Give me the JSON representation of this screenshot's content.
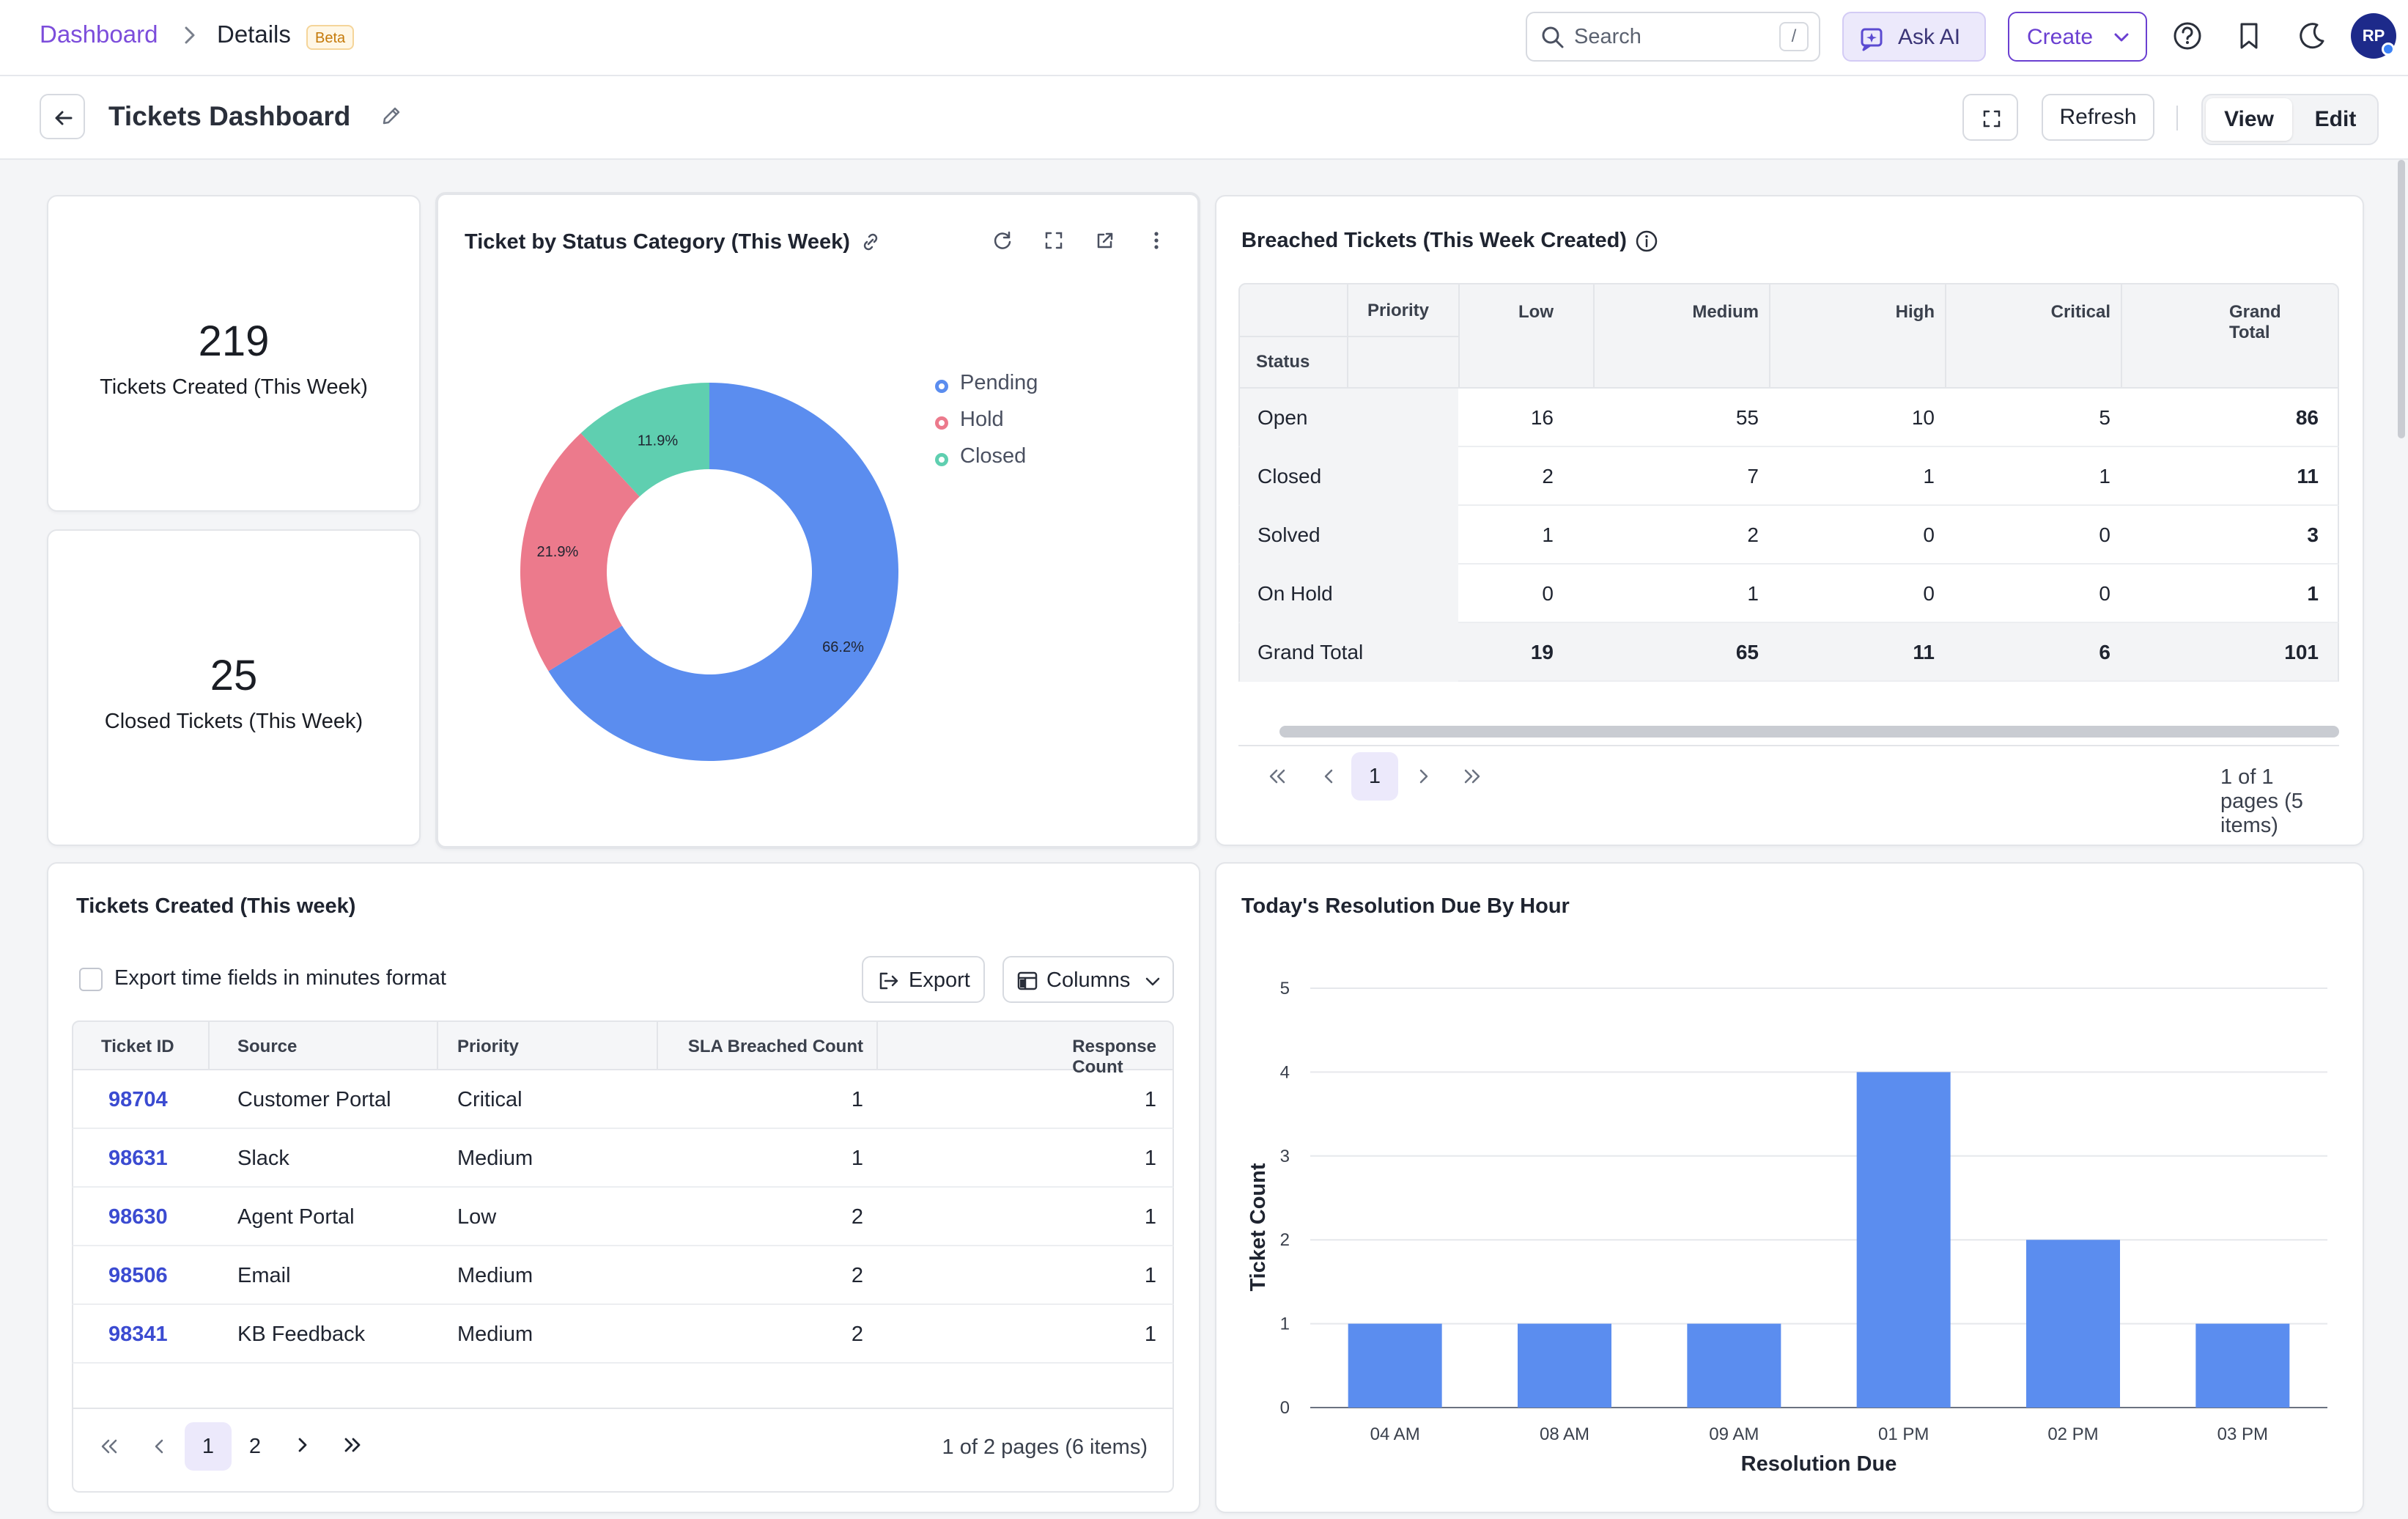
{
  "nav": {
    "breadcrumb_root": "Dashboard",
    "breadcrumb_current": "Details",
    "beta_badge": "Beta",
    "search_placeholder": "Search",
    "search_shortcut": "/",
    "ask_ai_label": "Ask AI",
    "create_label": "Create",
    "avatar_initials": "RP"
  },
  "page": {
    "title": "Tickets Dashboard",
    "refresh_label": "Refresh",
    "view_label": "View",
    "edit_label": "Edit"
  },
  "kpis": [
    {
      "value": "219",
      "label": "Tickets Created (This Week)"
    },
    {
      "value": "25",
      "label": "Closed Tickets (This Week)"
    }
  ],
  "status_chart": {
    "title": "Ticket by Status Category (This Week)",
    "legend": [
      {
        "name": "Pending",
        "color": "#5b8def"
      },
      {
        "name": "Hold",
        "color": "#ec7a8c"
      },
      {
        "name": "Closed",
        "color": "#5fcfb0"
      }
    ]
  },
  "breached": {
    "title": "Breached Tickets (This Week Created)",
    "priority_header": "Priority",
    "status_header": "Status",
    "columns": [
      "Low",
      "Medium",
      "High",
      "Critical",
      "Grand Total"
    ],
    "rows": [
      {
        "status": "Open",
        "values": [
          "16",
          "55",
          "10",
          "5",
          "86"
        ]
      },
      {
        "status": "Closed",
        "values": [
          "2",
          "7",
          "1",
          "1",
          "11"
        ]
      },
      {
        "status": "Solved",
        "values": [
          "1",
          "2",
          "0",
          "0",
          "3"
        ]
      },
      {
        "status": "On Hold",
        "values": [
          "0",
          "1",
          "0",
          "0",
          "1"
        ]
      }
    ],
    "grand_total": {
      "status": "Grand Total",
      "values": [
        "19",
        "65",
        "11",
        "6",
        "101"
      ]
    },
    "current_page": "1",
    "pager_info": "1 of 1 pages (5 items)"
  },
  "tickets_table": {
    "title": "Tickets Created (This week)",
    "export_checkbox_label": "Export time fields in minutes format",
    "export_label": "Export",
    "columns_label": "Columns",
    "headers": [
      "Ticket ID",
      "Source",
      "Priority",
      "SLA Breached Count",
      "Response Count"
    ],
    "rows": [
      {
        "id": "98704",
        "source": "Customer Portal",
        "priority": "Critical",
        "sla": "1",
        "response": "1"
      },
      {
        "id": "98631",
        "source": "Slack",
        "priority": "Medium",
        "sla": "1",
        "response": "1"
      },
      {
        "id": "98630",
        "source": "Agent Portal",
        "priority": "Low",
        "sla": "2",
        "response": "1"
      },
      {
        "id": "98506",
        "source": "Email",
        "priority": "Medium",
        "sla": "2",
        "response": "1"
      },
      {
        "id": "98341",
        "source": "KB Feedback",
        "priority": "Medium",
        "sla": "2",
        "response": "1"
      }
    ],
    "pages": [
      "1",
      "2"
    ],
    "pager_info": "1 of 2 pages (6 items)"
  },
  "resolution_chart": {
    "title": "Today's Resolution Due By Hour"
  },
  "chart_data": [
    {
      "type": "pie",
      "title": "Ticket by Status Category (This Week)",
      "categories": [
        "Pending",
        "Hold",
        "Closed"
      ],
      "values": [
        66.2,
        21.9,
        11.9
      ],
      "labels": [
        "66.2%",
        "21.9%",
        "11.9%"
      ],
      "colors": [
        "#5b8def",
        "#ec7a8c",
        "#5fcfb0"
      ],
      "legend": "right"
    },
    {
      "type": "bar",
      "title": "Today's Resolution Due By Hour",
      "categories": [
        "04 AM",
        "08 AM",
        "09 AM",
        "01 PM",
        "02 PM",
        "03 PM"
      ],
      "values": [
        1,
        1,
        1,
        4,
        2,
        1
      ],
      "xlabel": "Resolution Due",
      "ylabel": "Ticket Count",
      "ylim": [
        0,
        5
      ],
      "yticks": [
        "0",
        "1",
        "2",
        "3",
        "4",
        "5"
      ],
      "grid": true,
      "color": "#5b8def"
    }
  ]
}
